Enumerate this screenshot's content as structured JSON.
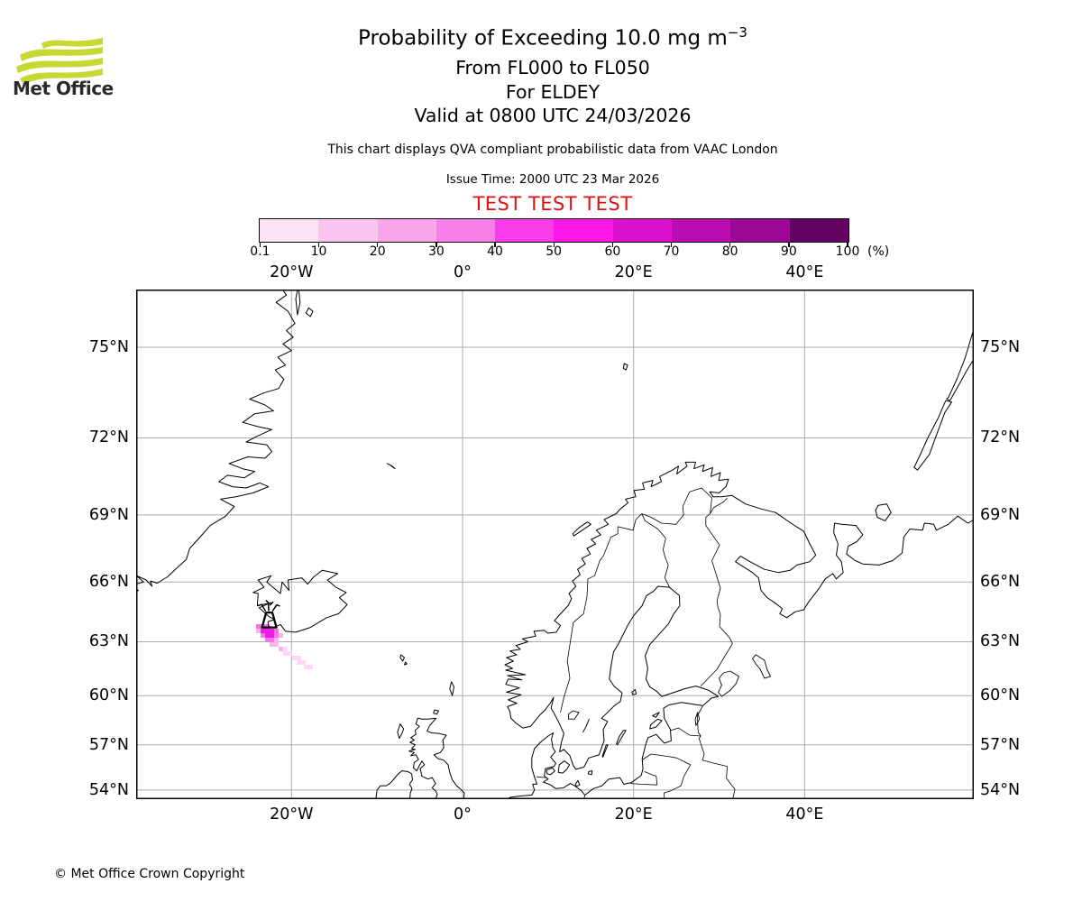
{
  "header": {
    "logo_text": "Met Office",
    "logo_green": "#c6d831",
    "title_main": "Probability of Exceeding 10.0 mg m",
    "title_sup": "−3",
    "subtitle1": "From FL000 to FL050",
    "subtitle2": "For ELDEY",
    "subtitle3": "Valid at 0800 UTC 24/03/2026",
    "note": "This chart displays QVA compliant probabilistic data from VAAC London",
    "issue_time": "Issue Time: 2000 UTC 23 Mar 2026",
    "test_banner": "TEST TEST TEST",
    "test_color": "#dd1111"
  },
  "colorbar": {
    "tick_labels": [
      "0.1",
      "10",
      "20",
      "30",
      "40",
      "50",
      "60",
      "70",
      "80",
      "90",
      "100"
    ],
    "unit_label": "(%)",
    "segment_colors": [
      "#fce4f6",
      "#fac5f0",
      "#f8a6ea",
      "#f87ee8",
      "#fa3cea",
      "#fb18e6",
      "#da12ce",
      "#bb0cb2",
      "#9c0795",
      "#630260"
    ]
  },
  "map": {
    "grid_color": "#ababab",
    "lon_ticks": [
      -20,
      0,
      20,
      40
    ],
    "lon_labels": [
      "20°W",
      "0°",
      "20°E",
      "40°E"
    ],
    "lat_ticks": [
      54,
      57,
      60,
      63,
      66,
      69,
      72,
      75
    ],
    "lat_labels": [
      "54°N",
      "57°N",
      "60°N",
      "63°N",
      "66°N",
      "69°N",
      "72°N",
      "75°N"
    ],
    "volcano": {
      "name": "ELDEY",
      "lon": -22.6,
      "lat": 63.75
    },
    "plume_level_colors": {
      "1": "#fbd9f4",
      "2": "#f8b2ee",
      "3": "#f473e7",
      "4": "#ee1be0"
    },
    "plume_cells": [
      [
        133,
        371,
        3
      ],
      [
        138,
        371,
        3
      ],
      [
        143,
        371,
        3
      ],
      [
        133,
        376,
        2
      ],
      [
        138,
        376,
        4
      ],
      [
        143,
        376,
        4
      ],
      [
        148,
        376,
        4
      ],
      [
        153,
        376,
        3
      ],
      [
        138,
        381,
        3
      ],
      [
        143,
        381,
        4
      ],
      [
        148,
        381,
        4
      ],
      [
        153,
        381,
        3
      ],
      [
        158,
        381,
        2
      ],
      [
        143,
        386,
        3
      ],
      [
        148,
        386,
        3
      ],
      [
        153,
        386,
        2
      ],
      [
        148,
        391,
        2
      ],
      [
        153,
        391,
        2
      ],
      [
        158,
        396,
        2
      ],
      [
        163,
        396,
        1
      ],
      [
        163,
        401,
        1
      ],
      [
        168,
        401,
        1
      ],
      [
        173,
        406,
        1
      ],
      [
        178,
        406,
        1
      ],
      [
        178,
        411,
        1
      ],
      [
        183,
        411,
        1
      ],
      [
        186,
        416,
        1
      ],
      [
        191,
        416,
        1
      ]
    ]
  },
  "chart_data": {
    "type": "heatmap",
    "title": "Probability of Exceeding 10.0 mg m−3",
    "legend_scale_percent": [
      0.1,
      10,
      20,
      30,
      40,
      50,
      60,
      70,
      80,
      90,
      100
    ],
    "projection": "mercator",
    "extent": {
      "lon_min": -38.2,
      "lon_max": 59.7,
      "lat_min": 53.4,
      "lat_max": 76.6
    },
    "source_volcano": {
      "name": "ELDEY",
      "lon": -22.6,
      "lat": 63.75
    },
    "plume_description": "Ash exceedance probability plume extending SE from Eldey, Iceland; max bin 50-60% at source decaying to 0.1-10% near 61.5N 19W"
  },
  "footer": {
    "copyright": "© Met Office Crown Copyright"
  }
}
